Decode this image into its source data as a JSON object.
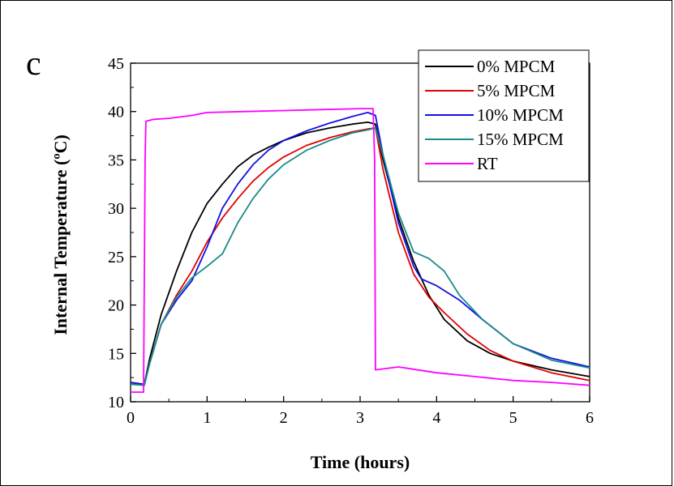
{
  "panel_label": "c",
  "chart_data": {
    "type": "line",
    "xlabel": "Time (hours)",
    "ylabel": "Internal Temperature (ºC)",
    "xlim": [
      0,
      6
    ],
    "ylim": [
      10,
      45
    ],
    "xticks": [
      0,
      1,
      2,
      3,
      4,
      5,
      6
    ],
    "yticks": [
      10,
      15,
      20,
      25,
      30,
      35,
      40,
      45
    ],
    "grid": false,
    "legend_position": "top-right",
    "series": [
      {
        "name": "0% MPCM",
        "color": "#000000",
        "x": [
          0,
          0.18,
          0.25,
          0.4,
          0.6,
          0.8,
          1.0,
          1.2,
          1.4,
          1.6,
          1.8,
          2.0,
          2.3,
          2.6,
          2.9,
          3.1,
          3.2,
          3.3,
          3.5,
          3.7,
          3.9,
          4.1,
          4.4,
          4.7,
          5.0,
          5.5,
          6.0
        ],
        "y": [
          12.0,
          11.8,
          14.5,
          19.0,
          23.5,
          27.5,
          30.5,
          32.5,
          34.3,
          35.5,
          36.3,
          37.0,
          37.8,
          38.3,
          38.7,
          38.9,
          38.7,
          35.0,
          29.0,
          24.5,
          21.0,
          18.5,
          16.3,
          15.0,
          14.2,
          13.3,
          12.6
        ]
      },
      {
        "name": "5% MPCM",
        "color": "#e00000",
        "x": [
          0,
          0.18,
          0.25,
          0.4,
          0.6,
          0.8,
          1.0,
          1.2,
          1.4,
          1.6,
          1.8,
          2.0,
          2.3,
          2.6,
          2.9,
          3.1,
          3.2,
          3.3,
          3.5,
          3.7,
          3.9,
          4.1,
          4.4,
          4.7,
          5.0,
          5.5,
          6.0
        ],
        "y": [
          11.8,
          11.8,
          14.0,
          18.0,
          21.0,
          23.5,
          26.5,
          29.0,
          31.0,
          32.8,
          34.2,
          35.3,
          36.5,
          37.3,
          37.9,
          38.2,
          38.3,
          34.0,
          27.5,
          23.2,
          20.8,
          19.2,
          17.0,
          15.3,
          14.2,
          13.0,
          12.2
        ]
      },
      {
        "name": "10% MPCM",
        "color": "#1010e0",
        "x": [
          0,
          0.18,
          0.25,
          0.4,
          0.6,
          0.8,
          1.0,
          1.2,
          1.4,
          1.6,
          1.8,
          2.0,
          2.3,
          2.6,
          2.9,
          3.1,
          3.2,
          3.3,
          3.5,
          3.7,
          3.8,
          4.0,
          4.3,
          4.6,
          5.0,
          5.5,
          6.0
        ],
        "y": [
          12.0,
          11.8,
          14.0,
          18.0,
          20.5,
          22.5,
          26.0,
          30.0,
          32.5,
          34.5,
          36.0,
          37.0,
          38.0,
          38.8,
          39.5,
          39.9,
          39.6,
          35.5,
          28.5,
          24.0,
          22.7,
          22.0,
          20.5,
          18.5,
          16.0,
          14.5,
          13.6
        ]
      },
      {
        "name": "15% MPCM",
        "color": "#1a8a8a",
        "x": [
          0,
          0.18,
          0.25,
          0.4,
          0.6,
          0.8,
          1.0,
          1.2,
          1.4,
          1.6,
          1.8,
          2.0,
          2.3,
          2.6,
          2.9,
          3.1,
          3.2,
          3.3,
          3.5,
          3.7,
          3.9,
          4.1,
          4.3,
          4.6,
          5.0,
          5.5,
          6.0
        ],
        "y": [
          11.8,
          11.7,
          14.0,
          18.0,
          20.8,
          22.8,
          24.0,
          25.3,
          28.5,
          31.0,
          33.0,
          34.5,
          36.0,
          37.0,
          37.8,
          38.1,
          38.3,
          35.5,
          29.5,
          25.5,
          24.8,
          23.5,
          21.0,
          18.5,
          16.0,
          14.3,
          13.5
        ]
      },
      {
        "name": "RT",
        "color": "#ff00ff",
        "x": [
          0,
          0.17,
          0.19,
          0.2,
          0.3,
          0.5,
          0.8,
          1.0,
          1.5,
          2.0,
          2.5,
          3.0,
          3.17,
          3.19,
          3.2,
          3.5,
          4.0,
          4.5,
          5.0,
          5.5,
          6.0
        ],
        "y": [
          11.0,
          11.0,
          35.0,
          39.0,
          39.2,
          39.3,
          39.6,
          39.9,
          40.0,
          40.1,
          40.2,
          40.3,
          40.3,
          35.0,
          13.3,
          13.6,
          13.0,
          12.6,
          12.2,
          12.0,
          11.7
        ]
      }
    ]
  }
}
